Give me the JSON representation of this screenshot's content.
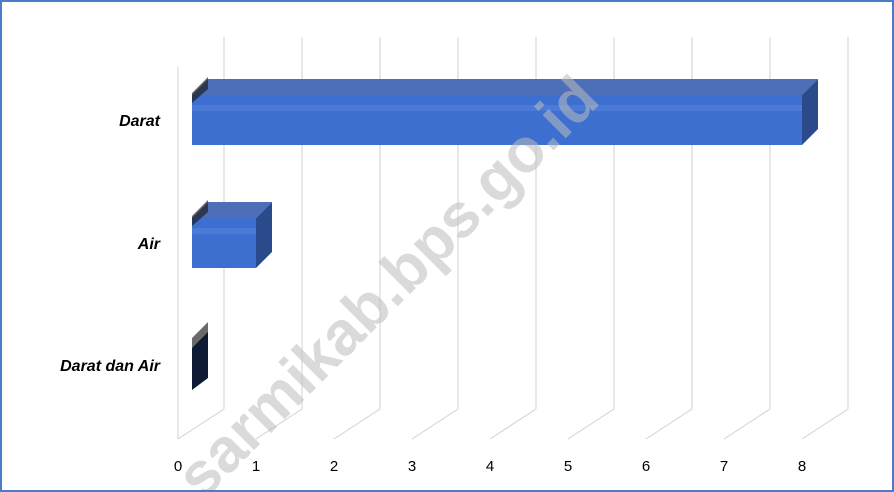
{
  "chart_data": {
    "type": "bar",
    "orientation": "horizontal",
    "categories": [
      "Darat",
      "Air",
      "Darat dan Air"
    ],
    "values": [
      8,
      1,
      0
    ],
    "xlim": [
      0,
      8
    ],
    "xticks": [
      "0",
      "1",
      "2",
      "3",
      "4",
      "5",
      "6",
      "7",
      "8"
    ],
    "title": "",
    "xlabel": "",
    "ylabel": "",
    "grid": "vertical",
    "style": "3d",
    "bar_color": "#3d6fd0",
    "bar_top_color": "#4d6fb8",
    "bar_side_color": "#2a4a8c",
    "zero_bar_color": "#0f1a33",
    "watermark": "sarmikab.bps.go.id"
  }
}
